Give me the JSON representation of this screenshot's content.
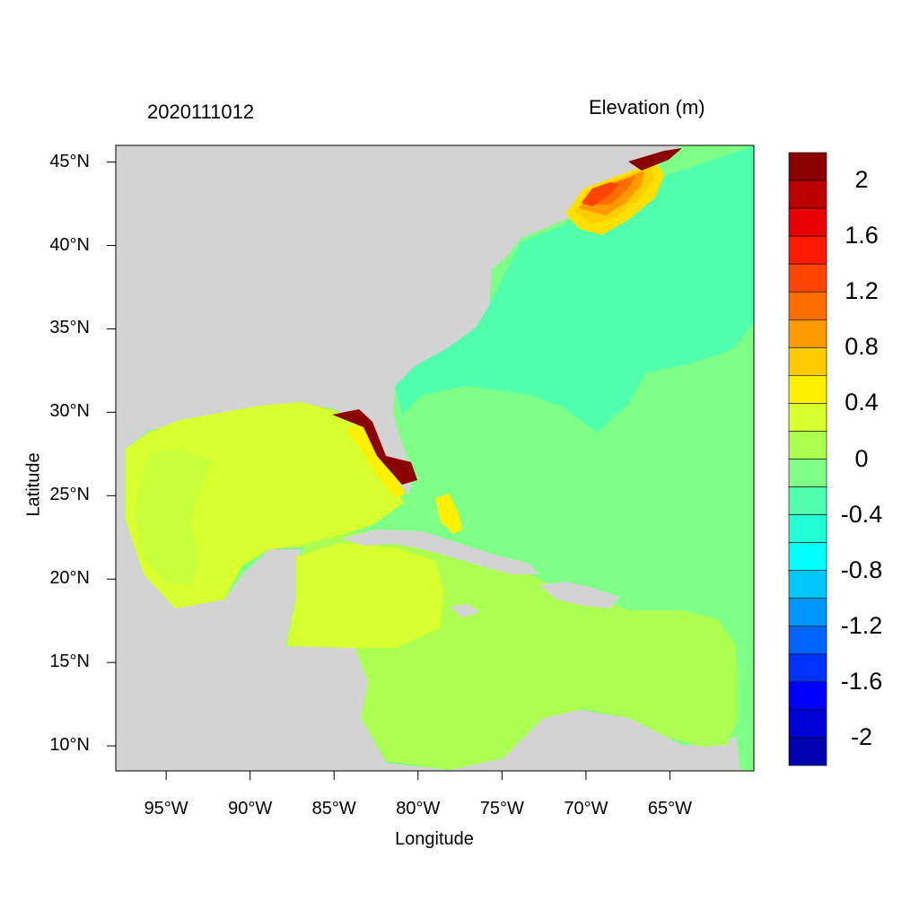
{
  "titles": {
    "date": "2020111012",
    "variable": "Elevation (m)"
  },
  "axes": {
    "xlabel": "Longitude",
    "ylabel": "Latitude",
    "x_range": [
      -98,
      -60
    ],
    "y_range": [
      8.5,
      46
    ],
    "x_ticks": [
      {
        "value": -95,
        "label": "95°W"
      },
      {
        "value": -90,
        "label": "90°W"
      },
      {
        "value": -85,
        "label": "85°W"
      },
      {
        "value": -80,
        "label": "80°W"
      },
      {
        "value": -75,
        "label": "75°W"
      },
      {
        "value": -70,
        "label": "70°W"
      },
      {
        "value": -65,
        "label": "65°W"
      }
    ],
    "y_ticks": [
      {
        "value": 45,
        "label": "45°N"
      },
      {
        "value": 40,
        "label": "40°N"
      },
      {
        "value": 35,
        "label": "35°N"
      },
      {
        "value": 30,
        "label": "30°N"
      },
      {
        "value": 25,
        "label": "25°N"
      },
      {
        "value": 20,
        "label": "20°N"
      },
      {
        "value": 15,
        "label": "15°N"
      },
      {
        "value": 10,
        "label": "10°N"
      }
    ]
  },
  "colors": {
    "land": "#d3d3d3",
    "atlantic": "#7eff85",
    "gulf": "#d8ff2e",
    "caribbean": "#abff50",
    "shelf_negative": "#4fffab",
    "inundation": "#8b0000"
  },
  "colorbar": {
    "bins": [
      {
        "color": "#8b0000"
      },
      {
        "color": "#bb0000"
      },
      {
        "color": "#e80000"
      },
      {
        "color": "#ff1a00"
      },
      {
        "color": "#ff4400"
      },
      {
        "color": "#ff6f00"
      },
      {
        "color": "#ff9900"
      },
      {
        "color": "#ffcc00"
      },
      {
        "color": "#fff000"
      },
      {
        "color": "#d8ff2e"
      },
      {
        "color": "#abff50"
      },
      {
        "color": "#7eff85"
      },
      {
        "color": "#4fffab"
      },
      {
        "color": "#22ffd6"
      },
      {
        "color": "#00ffff"
      },
      {
        "color": "#00c8ff"
      },
      {
        "color": "#0096ff"
      },
      {
        "color": "#0064ff"
      },
      {
        "color": "#0032ff"
      },
      {
        "color": "#0000ff"
      },
      {
        "color": "#0000d8"
      },
      {
        "color": "#0000b0"
      }
    ],
    "labels": [
      "2",
      "1.6",
      "1.2",
      "0.8",
      "0.4",
      "0",
      "-0.4",
      "-0.8",
      "-1.2",
      "-1.6",
      "-2"
    ]
  }
}
